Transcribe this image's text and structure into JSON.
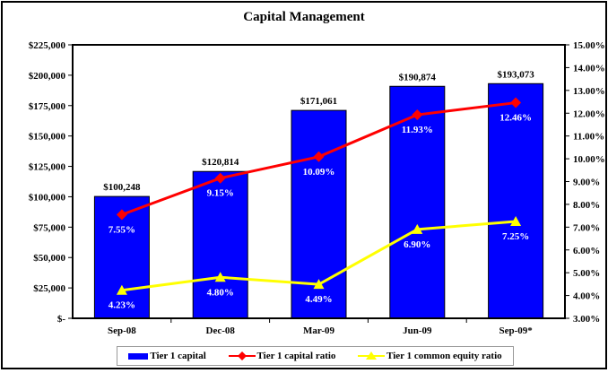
{
  "chart_data": {
    "type": "bar",
    "subtype": "combo-bar-line",
    "title": "Capital Management",
    "categories": [
      "Sep-08",
      "Dec-08",
      "Mar-09",
      "Jun-09",
      "Sep-09*"
    ],
    "bar_series": {
      "name": "Tier 1 capital",
      "color": "#0000ff",
      "axis": "left",
      "values": [
        100248,
        120814,
        171061,
        190874,
        193073
      ],
      "labels": [
        "$100,248",
        "$120,814",
        "$171,061",
        "$190,874",
        "$193,073"
      ]
    },
    "line_series": [
      {
        "name": "Tier 1 capital ratio",
        "color": "#ff0000",
        "marker": "diamond",
        "axis": "right",
        "values": [
          7.55,
          9.15,
          10.09,
          11.93,
          12.46
        ],
        "labels": [
          "7.55%",
          "9.15%",
          "10.09%",
          "11.93%",
          "12.46%"
        ]
      },
      {
        "name": "Tier 1 common equity ratio",
        "color": "#ffff00",
        "marker": "triangle",
        "axis": "right",
        "values": [
          4.23,
          4.8,
          4.49,
          6.9,
          7.25
        ],
        "labels": [
          "4.23%",
          "4.80%",
          "4.49%",
          "6.90%",
          "7.25%"
        ]
      }
    ],
    "left_axis": {
      "min": 0,
      "max": 225000,
      "step": 25000,
      "tick_labels": [
        "$225,000",
        "$200,000",
        "$175,000",
        "$150,000",
        "$125,000",
        "$100,000",
        "$75,000",
        "$50,000",
        "$25,000",
        "$-"
      ]
    },
    "right_axis": {
      "min": 3,
      "max": 15,
      "step": 1,
      "tick_labels": [
        "15.00%",
        "14.00%",
        "13.00%",
        "12.00%",
        "11.00%",
        "10.00%",
        "9.00%",
        "8.00%",
        "7.00%",
        "6.00%",
        "5.00%",
        "4.00%",
        "3.00%"
      ]
    },
    "grid": false,
    "legend_position": "bottom",
    "label_text_color_on_bars": "#ffffff",
    "plot_border_color": "#000000"
  }
}
